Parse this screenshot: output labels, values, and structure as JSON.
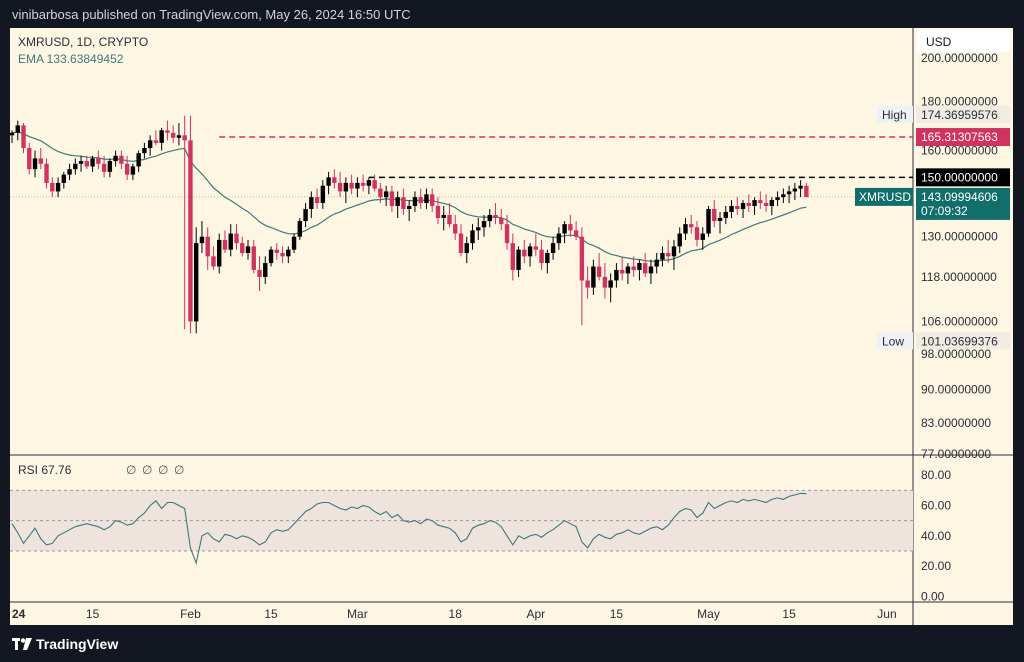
{
  "header": {
    "text": "vinibarbosa published on TradingView.com, May 26, 2024 16:50 UTC"
  },
  "footer": {
    "brand": "TradingView"
  },
  "colors": {
    "bg": "#fdf6e3",
    "frame": "#131722",
    "up": "#000000",
    "down": "#d0335f",
    "ema": "#3b7a7a",
    "red_level": "#d0335f",
    "black_level": "#000000",
    "last": "#126e6a",
    "text": "#131722",
    "axis_text": "#2a2e39",
    "rsi_line": "#3b7a7a",
    "rsi_band": "#efe3dd"
  },
  "chart_data": [
    {
      "type": "candlestick",
      "symbol": "XMRUSD",
      "title": "XMRUSD, 1D, CRYPTO",
      "indicator": {
        "name": "EMA",
        "value": "133.63849452"
      },
      "currency": "USD",
      "yticks": [
        "200.00000000",
        "180.00000000",
        "160.00000000",
        "130.00000000",
        "118.00000000",
        "106.00000000",
        "98.00000000",
        "90.00000000",
        "83.00000000",
        "77.00000000"
      ],
      "ytick_values": [
        200,
        180,
        160,
        130,
        118,
        106,
        98,
        90,
        83,
        77
      ],
      "ylim": [
        77,
        215
      ],
      "y_scale": "log",
      "xticks": [
        {
          "label": "24",
          "day": 0
        },
        {
          "label": "15",
          "day": 14
        },
        {
          "label": "Feb",
          "day": 31
        },
        {
          "label": "15",
          "day": 45
        },
        {
          "label": "Mar",
          "day": 60
        },
        {
          "label": "18",
          "day": 77
        },
        {
          "label": "Apr",
          "day": 91
        },
        {
          "label": "15",
          "day": 105
        },
        {
          "label": "May",
          "day": 121
        },
        {
          "label": "15",
          "day": 135
        },
        {
          "label": "Jun",
          "day": 152
        }
      ],
      "xlim": [
        0,
        160
      ],
      "markers": {
        "high": {
          "label": "High",
          "value": "174.36959576",
          "price": 174.37,
          "day": 31
        },
        "low": {
          "label": "Low",
          "value": "101.03699376",
          "price": 101.04,
          "day": 36
        }
      },
      "levels": [
        {
          "label": "165.31307563",
          "price": 165.31,
          "style": "dashed",
          "color": "red",
          "from_day": 36
        },
        {
          "label": "150.00000000",
          "price": 150.0,
          "style": "dashed",
          "color": "black",
          "from_day": 62
        }
      ],
      "last_price": {
        "label": "XMRUSD",
        "value": "143.09994606",
        "price": 143.1,
        "countdown": "07:09:32"
      },
      "candles": [
        [
          0,
          166,
          168,
          163,
          167
        ],
        [
          1,
          167,
          172,
          164,
          170
        ],
        [
          2,
          170,
          171,
          159,
          161
        ],
        [
          3,
          161,
          163,
          151,
          153
        ],
        [
          4,
          153,
          160,
          150,
          157
        ],
        [
          5,
          157,
          161,
          153,
          155
        ],
        [
          6,
          155,
          157,
          146,
          148
        ],
        [
          7,
          148,
          150,
          143,
          145
        ],
        [
          8,
          145,
          150,
          143,
          148
        ],
        [
          9,
          148,
          152,
          146,
          151
        ],
        [
          10,
          151,
          155,
          149,
          153
        ],
        [
          11,
          153,
          157,
          151,
          155
        ],
        [
          12,
          155,
          158,
          152,
          156
        ],
        [
          13,
          156,
          158,
          153,
          154
        ],
        [
          14,
          154,
          158,
          152,
          157
        ],
        [
          15,
          157,
          160,
          153,
          155
        ],
        [
          16,
          155,
          158,
          150,
          152
        ],
        [
          17,
          152,
          157,
          150,
          156
        ],
        [
          18,
          156,
          160,
          154,
          158
        ],
        [
          19,
          158,
          160,
          153,
          155
        ],
        [
          20,
          155,
          158,
          149,
          151
        ],
        [
          21,
          151,
          155,
          149,
          154
        ],
        [
          22,
          154,
          160,
          152,
          159
        ],
        [
          23,
          159,
          163,
          157,
          161
        ],
        [
          24,
          161,
          166,
          158,
          164
        ],
        [
          25,
          164,
          168,
          162,
          163
        ],
        [
          26,
          163,
          169,
          160,
          168
        ],
        [
          27,
          168,
          172,
          164,
          167
        ],
        [
          28,
          167,
          170,
          163,
          165
        ],
        [
          29,
          165,
          171,
          162,
          166
        ],
        [
          30,
          166,
          174,
          104,
          164
        ],
        [
          31,
          164,
          174,
          103,
          106
        ],
        [
          32,
          106,
          133,
          103,
          128
        ],
        [
          33,
          128,
          135,
          125,
          130
        ],
        [
          34,
          130,
          133,
          120,
          124
        ],
        [
          35,
          124,
          127,
          120,
          121
        ],
        [
          36,
          121,
          131,
          119,
          129
        ],
        [
          37,
          129,
          132,
          125,
          126
        ],
        [
          38,
          126,
          134,
          124,
          131
        ],
        [
          39,
          131,
          134,
          126,
          128
        ],
        [
          40,
          128,
          130,
          124,
          125
        ],
        [
          41,
          125,
          129,
          123,
          127
        ],
        [
          42,
          127,
          129,
          119,
          120
        ],
        [
          43,
          120,
          124,
          114,
          118
        ],
        [
          44,
          118,
          124,
          116,
          122
        ],
        [
          45,
          122,
          127,
          121,
          126
        ],
        [
          46,
          126,
          128,
          123,
          125
        ],
        [
          47,
          125,
          127,
          122,
          124
        ],
        [
          48,
          124,
          127,
          122,
          126
        ],
        [
          49,
          126,
          131,
          125,
          130
        ],
        [
          50,
          130,
          136,
          129,
          135
        ],
        [
          51,
          135,
          141,
          133,
          139
        ],
        [
          52,
          139,
          145,
          136,
          143
        ],
        [
          53,
          143,
          146,
          139,
          141
        ],
        [
          54,
          141,
          149,
          139,
          147
        ],
        [
          55,
          147,
          152,
          144,
          150
        ],
        [
          56,
          150,
          153,
          146,
          148
        ],
        [
          57,
          148,
          152,
          143,
          145
        ],
        [
          58,
          145,
          150,
          141,
          148
        ],
        [
          59,
          148,
          151,
          144,
          146
        ],
        [
          60,
          146,
          150,
          143,
          148
        ],
        [
          61,
          148,
          151,
          145,
          147
        ],
        [
          62,
          147,
          150,
          144,
          149
        ],
        [
          63,
          149,
          151,
          145,
          146
        ],
        [
          64,
          146,
          148,
          141,
          143
        ],
        [
          65,
          143,
          147,
          140,
          145
        ],
        [
          66,
          145,
          147,
          138,
          140
        ],
        [
          67,
          140,
          145,
          136,
          143
        ],
        [
          68,
          143,
          146,
          137,
          139
        ],
        [
          69,
          139,
          142,
          135,
          140
        ],
        [
          70,
          140,
          145,
          138,
          143
        ],
        [
          71,
          143,
          146,
          139,
          141
        ],
        [
          72,
          141,
          146,
          139,
          144
        ],
        [
          73,
          144,
          146,
          138,
          140
        ],
        [
          74,
          140,
          143,
          134,
          136
        ],
        [
          75,
          136,
          140,
          132,
          137
        ],
        [
          76,
          137,
          141,
          133,
          134
        ],
        [
          77,
          134,
          137,
          129,
          131
        ],
        [
          78,
          131,
          134,
          124,
          125
        ],
        [
          79,
          125,
          130,
          122,
          128
        ],
        [
          80,
          128,
          134,
          126,
          132
        ],
        [
          81,
          132,
          136,
          129,
          133
        ],
        [
          82,
          133,
          137,
          130,
          135
        ],
        [
          83,
          135,
          139,
          133,
          137
        ],
        [
          84,
          137,
          141,
          134,
          136
        ],
        [
          85,
          136,
          139,
          132,
          134
        ],
        [
          86,
          134,
          137,
          126,
          128
        ],
        [
          87,
          128,
          131,
          117,
          120
        ],
        [
          88,
          120,
          127,
          118,
          126
        ],
        [
          89,
          126,
          129,
          122,
          124
        ],
        [
          90,
          124,
          128,
          121,
          127
        ],
        [
          91,
          127,
          131,
          124,
          126
        ],
        [
          92,
          126,
          129,
          120,
          122
        ],
        [
          93,
          122,
          126,
          119,
          125
        ],
        [
          94,
          125,
          130,
          123,
          128
        ],
        [
          95,
          128,
          133,
          126,
          131
        ],
        [
          96,
          131,
          135,
          128,
          134
        ],
        [
          97,
          134,
          137,
          130,
          132
        ],
        [
          98,
          132,
          135,
          129,
          130
        ],
        [
          99,
          130,
          133,
          105,
          117
        ],
        [
          100,
          117,
          121,
          112,
          115
        ],
        [
          101,
          115,
          123,
          113,
          121
        ],
        [
          102,
          121,
          125,
          117,
          118
        ],
        [
          103,
          118,
          122,
          112,
          115
        ],
        [
          104,
          115,
          119,
          111,
          117
        ],
        [
          105,
          117,
          122,
          115,
          120
        ],
        [
          106,
          120,
          124,
          117,
          119
        ],
        [
          107,
          119,
          122,
          116,
          121
        ],
        [
          108,
          121,
          124,
          118,
          120
        ],
        [
          109,
          120,
          123,
          117,
          122
        ],
        [
          110,
          122,
          125,
          118,
          119
        ],
        [
          111,
          119,
          123,
          116,
          121
        ],
        [
          112,
          121,
          125,
          119,
          123
        ],
        [
          113,
          123,
          127,
          121,
          125
        ],
        [
          114,
          125,
          129,
          122,
          124
        ],
        [
          115,
          124,
          129,
          120,
          127
        ],
        [
          116,
          127,
          133,
          125,
          131
        ],
        [
          117,
          131,
          136,
          129,
          134
        ],
        [
          118,
          134,
          137,
          131,
          133
        ],
        [
          119,
          133,
          135,
          127,
          129
        ],
        [
          120,
          129,
          133,
          126,
          131
        ],
        [
          121,
          131,
          140,
          130,
          139
        ],
        [
          122,
          139,
          142,
          133,
          135
        ],
        [
          123,
          135,
          138,
          131,
          136
        ],
        [
          124,
          136,
          140,
          134,
          138
        ],
        [
          125,
          138,
          142,
          136,
          140
        ],
        [
          126,
          140,
          143,
          137,
          139
        ],
        [
          127,
          139,
          142,
          136,
          141
        ],
        [
          128,
          141,
          144,
          138,
          140
        ],
        [
          129,
          140,
          143,
          137,
          142
        ],
        [
          130,
          142,
          145,
          139,
          141
        ],
        [
          131,
          141,
          144,
          138,
          140
        ],
        [
          132,
          140,
          143,
          137,
          142
        ],
        [
          133,
          142,
          145,
          140,
          143
        ],
        [
          134,
          143,
          146,
          141,
          144
        ],
        [
          135,
          144,
          147,
          141,
          145
        ],
        [
          136,
          145,
          148,
          142,
          146
        ],
        [
          137,
          146,
          149,
          143,
          147
        ],
        [
          138,
          147,
          148,
          143,
          143
        ]
      ]
    },
    {
      "type": "line",
      "name": "RSI",
      "label": "RSI",
      "value": "67.76",
      "placeholders": [
        "∅",
        "∅",
        "∅",
        "∅"
      ],
      "yticks": [
        "80.00",
        "60.00",
        "40.00",
        "20.00",
        "0.00"
      ],
      "ytick_values": [
        80,
        60,
        40,
        20,
        0
      ],
      "ylim": [
        -3,
        90
      ],
      "band": [
        30,
        70
      ],
      "midline": 50,
      "values": [
        48,
        42,
        35,
        40,
        45,
        38,
        34,
        35,
        40,
        42,
        44,
        46,
        47,
        48,
        47,
        46,
        44,
        46,
        50,
        49,
        47,
        48,
        52,
        55,
        60,
        63,
        58,
        62,
        62,
        60,
        58,
        32,
        22,
        40,
        42,
        38,
        36,
        41,
        40,
        38,
        40,
        39,
        37,
        34,
        36,
        42,
        44,
        43,
        44,
        48,
        52,
        56,
        58,
        61,
        62,
        62,
        60,
        58,
        57,
        59,
        58,
        60,
        59,
        56,
        54,
        56,
        52,
        54,
        50,
        49,
        50,
        48,
        51,
        50,
        47,
        46,
        45,
        42,
        36,
        38,
        45,
        47,
        48,
        50,
        49,
        46,
        40,
        34,
        40,
        38,
        40,
        41,
        39,
        42,
        44,
        47,
        50,
        48,
        46,
        36,
        32,
        38,
        41,
        39,
        38,
        41,
        42,
        44,
        42,
        41,
        43,
        45,
        46,
        44,
        47,
        52,
        56,
        58,
        57,
        52,
        55,
        62,
        58,
        60,
        62,
        63,
        62,
        64,
        63,
        64,
        63,
        62,
        64,
        65,
        64,
        66,
        67,
        68,
        67.76
      ]
    }
  ]
}
